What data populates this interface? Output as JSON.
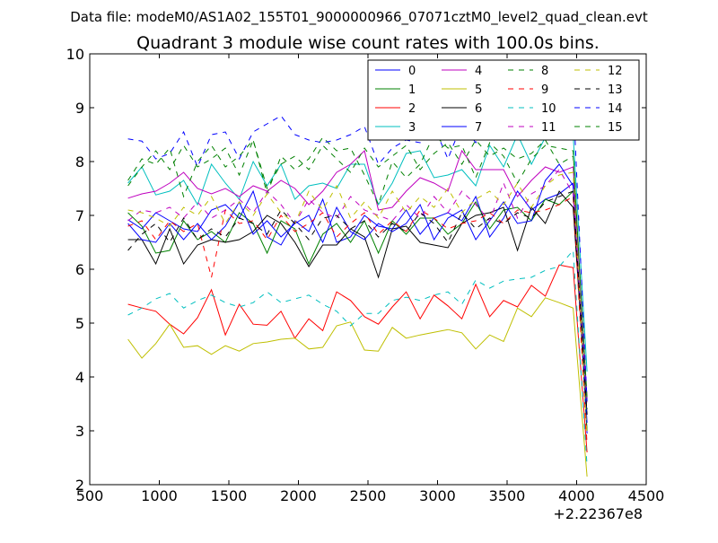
{
  "header": {
    "data_file_caption": "Data file: modeM0/AS1A02_155T01_9000000966_07071cztM0_level2_quad_clean.evt"
  },
  "chart_data": {
    "type": "line",
    "title": "Quadrant 3 module wise count rates with 100.0s bins.",
    "xlabel": "",
    "ylabel": "",
    "x_offset_label": "+2.22367e8",
    "xlim": [
      500,
      4500
    ],
    "ylim": [
      2,
      10
    ],
    "x_ticks": [
      500,
      1000,
      1500,
      2000,
      2500,
      3000,
      3500,
      4000,
      4500
    ],
    "y_ticks": [
      2,
      3,
      4,
      5,
      6,
      7,
      8,
      9,
      10
    ],
    "legend_location": "top-right",
    "legend_columns": 4,
    "x": [
      775,
      875,
      975,
      1075,
      1175,
      1275,
      1375,
      1475,
      1575,
      1675,
      1775,
      1875,
      1975,
      2075,
      2175,
      2275,
      2375,
      2475,
      2575,
      2675,
      2775,
      2875,
      2975,
      3075,
      3175,
      3275,
      3375,
      3475,
      3575,
      3675,
      3775,
      3875,
      3975,
      4075
    ],
    "series": [
      {
        "name": "0",
        "color": "#0000ff",
        "dash": "solid",
        "values": [
          6.92,
          6.75,
          7.05,
          6.9,
          6.75,
          6.7,
          7.1,
          7.2,
          6.95,
          7.45,
          6.6,
          6.45,
          6.9,
          6.7,
          7.3,
          6.5,
          6.6,
          7.0,
          6.8,
          6.75,
          7.1,
          6.65,
          6.95,
          7.05,
          6.9,
          7.35,
          6.6,
          6.95,
          7.45,
          7.1,
          7.3,
          7.4,
          7.6,
          2.95
        ]
      },
      {
        "name": "1",
        "color": "#008000",
        "dash": "solid",
        "values": [
          7.05,
          6.8,
          6.3,
          6.35,
          6.9,
          6.55,
          6.7,
          6.5,
          7.05,
          6.85,
          6.3,
          6.9,
          6.75,
          6.1,
          6.65,
          6.85,
          6.5,
          6.9,
          6.3,
          6.9,
          6.65,
          6.95,
          6.95,
          6.65,
          6.85,
          7.25,
          6.75,
          7.1,
          7.15,
          6.9,
          7.3,
          7.2,
          7.45,
          3.0
        ]
      },
      {
        "name": "2",
        "color": "#ff0000",
        "dash": "solid",
        "values": [
          5.35,
          5.28,
          5.22,
          4.98,
          4.8,
          5.1,
          5.62,
          4.78,
          5.35,
          4.98,
          4.96,
          5.22,
          4.72,
          5.08,
          4.86,
          5.58,
          5.42,
          5.12,
          4.98,
          5.3,
          5.58,
          5.08,
          5.52,
          5.32,
          5.08,
          5.72,
          5.12,
          5.42,
          5.3,
          5.7,
          5.5,
          6.08,
          6.03,
          2.6
        ]
      },
      {
        "name": "3",
        "color": "#00bfbf",
        "dash": "solid",
        "values": [
          7.6,
          7.9,
          7.38,
          7.45,
          7.65,
          7.2,
          7.95,
          7.6,
          7.3,
          8.0,
          7.55,
          7.95,
          7.3,
          7.55,
          7.6,
          7.5,
          7.95,
          7.95,
          7.2,
          7.6,
          8.15,
          8.2,
          7.7,
          7.75,
          7.85,
          7.55,
          8.3,
          7.9,
          8.5,
          7.95,
          8.45,
          8.5,
          8.5,
          4.1
        ]
      },
      {
        "name": "4",
        "color": "#bf00bf",
        "dash": "solid",
        "values": [
          7.32,
          7.4,
          7.45,
          7.6,
          7.8,
          7.5,
          7.4,
          7.5,
          7.35,
          7.55,
          7.45,
          7.65,
          7.5,
          7.2,
          7.45,
          7.8,
          7.95,
          8.2,
          7.1,
          7.15,
          7.45,
          7.7,
          7.6,
          7.45,
          8.2,
          7.85,
          7.85,
          7.85,
          7.35,
          7.65,
          7.9,
          7.8,
          7.9,
          3.6
        ]
      },
      {
        "name": "5",
        "color": "#bfbf00",
        "dash": "solid",
        "values": [
          4.7,
          4.35,
          4.62,
          4.98,
          4.55,
          4.58,
          4.42,
          4.58,
          4.48,
          4.62,
          4.65,
          4.7,
          4.72,
          4.52,
          4.55,
          4.95,
          5.02,
          4.5,
          4.48,
          4.92,
          4.72,
          4.78,
          4.83,
          4.88,
          4.82,
          4.52,
          4.78,
          4.66,
          5.28,
          5.12,
          5.47,
          5.38,
          5.28,
          2.15
        ]
      },
      {
        "name": "6",
        "color": "#000000",
        "dash": "solid",
        "values": [
          6.55,
          6.55,
          6.1,
          6.75,
          6.1,
          6.45,
          6.55,
          6.5,
          6.55,
          6.7,
          7.0,
          6.85,
          6.5,
          6.05,
          6.45,
          6.45,
          6.75,
          6.6,
          5.85,
          6.75,
          6.8,
          6.5,
          6.45,
          6.4,
          6.85,
          7.0,
          7.05,
          7.15,
          6.35,
          7.15,
          6.85,
          7.45,
          7.15,
          3.3
        ]
      },
      {
        "name": "7",
        "color": "#0000ff",
        "dash": "solid",
        "values": [
          6.85,
          6.55,
          6.5,
          6.85,
          6.55,
          6.85,
          6.55,
          6.8,
          7.25,
          6.65,
          6.9,
          6.6,
          6.85,
          7.0,
          6.5,
          7.15,
          6.7,
          6.55,
          6.85,
          6.7,
          6.85,
          7.2,
          6.55,
          6.95,
          7.1,
          6.55,
          6.9,
          7.25,
          6.85,
          6.9,
          7.65,
          7.95,
          7.55,
          3.15
        ]
      },
      {
        "name": "8",
        "color": "#008000",
        "dash": "dashed",
        "values": [
          7.65,
          8.05,
          7.95,
          8.25,
          7.35,
          8.0,
          8.3,
          7.9,
          8.1,
          8.4,
          7.4,
          8.1,
          7.85,
          8.05,
          8.45,
          8.2,
          8.25,
          7.75,
          7.2,
          8.0,
          7.7,
          7.95,
          8.5,
          8.25,
          8.3,
          7.7,
          8.35,
          8.1,
          7.6,
          8.05,
          8.3,
          8.25,
          8.2,
          3.4
        ]
      },
      {
        "name": "9",
        "color": "#ff0000",
        "dash": "dashed",
        "values": [
          6.8,
          6.9,
          6.55,
          6.9,
          6.7,
          6.85,
          5.85,
          7.1,
          6.85,
          6.9,
          6.55,
          7.0,
          6.7,
          6.85,
          7.05,
          6.6,
          6.85,
          7.05,
          6.65,
          6.9,
          6.7,
          7.1,
          6.95,
          6.75,
          6.85,
          6.9,
          7.05,
          6.85,
          7.1,
          7.05,
          7.1,
          7.2,
          7.35,
          2.75
        ]
      },
      {
        "name": "10",
        "color": "#00bfbf",
        "dash": "dashed",
        "values": [
          5.15,
          5.28,
          5.45,
          5.55,
          5.28,
          5.42,
          5.52,
          5.38,
          5.3,
          5.38,
          5.58,
          5.38,
          5.45,
          5.52,
          5.35,
          5.22,
          4.95,
          5.18,
          5.18,
          5.42,
          5.48,
          5.42,
          5.52,
          5.58,
          5.35,
          5.8,
          5.65,
          5.78,
          5.82,
          5.85,
          5.98,
          6.05,
          6.35,
          2.35
        ]
      },
      {
        "name": "11",
        "color": "#bf00bf",
        "dash": "dashed",
        "values": [
          6.9,
          7.1,
          7.05,
          7.15,
          6.95,
          7.25,
          6.95,
          7.1,
          7.3,
          7.05,
          7.45,
          7.2,
          6.85,
          7.3,
          7.05,
          6.95,
          7.35,
          7.1,
          7.0,
          6.9,
          7.2,
          6.95,
          7.35,
          7.05,
          7.45,
          7.2,
          6.9,
          7.6,
          6.95,
          7.4,
          7.55,
          7.85,
          7.4,
          3.5
        ]
      },
      {
        "name": "12",
        "color": "#bfbf00",
        "dash": "dashed",
        "values": [
          7.1,
          7.05,
          6.95,
          6.8,
          7.15,
          7.0,
          7.35,
          6.85,
          7.25,
          7.0,
          7.4,
          7.05,
          6.85,
          7.45,
          7.1,
          7.55,
          6.95,
          7.25,
          6.95,
          7.45,
          7.05,
          7.35,
          7.15,
          7.5,
          7.05,
          7.3,
          7.45,
          7.2,
          7.6,
          7.15,
          7.55,
          7.75,
          7.8,
          2.9
        ]
      },
      {
        "name": "13",
        "color": "#000000",
        "dash": "dashed",
        "values": [
          6.35,
          6.65,
          6.85,
          6.5,
          6.95,
          6.55,
          6.75,
          6.6,
          6.95,
          6.85,
          6.65,
          7.1,
          6.85,
          6.55,
          6.95,
          7.0,
          6.75,
          6.9,
          6.6,
          6.85,
          6.7,
          7.05,
          6.85,
          6.5,
          7.05,
          6.75,
          6.95,
          6.85,
          7.05,
          6.95,
          7.25,
          7.35,
          7.45,
          3.3
        ]
      },
      {
        "name": "14",
        "color": "#0000ff",
        "dash": "dashed",
        "values": [
          8.42,
          8.38,
          8.05,
          8.15,
          8.55,
          7.9,
          8.5,
          8.55,
          8.05,
          8.55,
          8.7,
          8.85,
          8.5,
          8.4,
          8.35,
          8.4,
          8.5,
          8.65,
          7.95,
          8.25,
          8.4,
          8.35,
          8.65,
          8.05,
          8.7,
          8.35,
          8.8,
          8.5,
          8.85,
          9.0,
          9.1,
          9.3,
          9.2,
          3.55
        ]
      },
      {
        "name": "15",
        "color": "#008000",
        "dash": "dashed",
        "values": [
          7.55,
          7.9,
          8.2,
          7.85,
          8.3,
          7.9,
          8.05,
          8.25,
          7.75,
          8.4,
          7.5,
          7.95,
          8.1,
          7.85,
          8.3,
          8.05,
          7.8,
          8.25,
          7.9,
          8.1,
          8.3,
          7.85,
          8.15,
          8.35,
          7.95,
          8.4,
          8.1,
          8.25,
          8.05,
          8.15,
          8.4,
          7.95,
          8.1,
          3.6
        ]
      }
    ]
  }
}
